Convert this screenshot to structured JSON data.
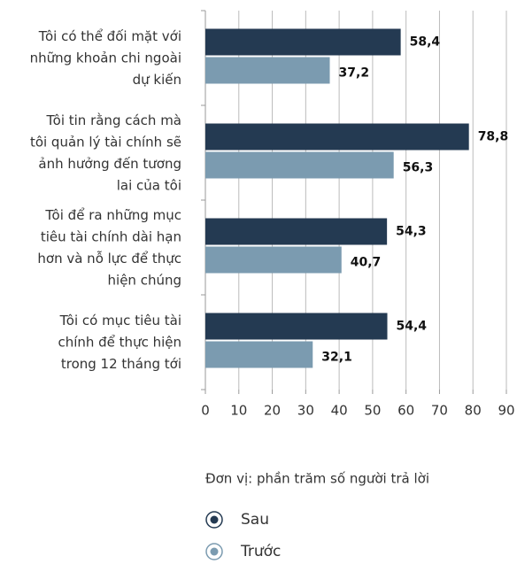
{
  "chart_data": {
    "type": "bar",
    "orientation": "horizontal",
    "categories": [
      "Tôi có thể đối mặt với\nnhững khoản chi ngoài\ndự kiến",
      "Tôi tin rằng cách mà\ntôi quản lý tài chính sẽ\nảnh hưởng đến tương\nlai của tôi",
      "Tôi để ra những mục\ntiêu tài chính dài hạn\nhơn và nỗ lực để thực\nhiện chúng",
      "Tôi có mục tiêu tài\nchính để thực hiện\ntrong 12 tháng tới"
    ],
    "series": [
      {
        "name": "Sau",
        "color": "#243a52",
        "values": [
          58.4,
          78.8,
          54.3,
          54.4
        ],
        "value_labels": [
          "58,4",
          "78,8",
          "54,3",
          "54,4"
        ]
      },
      {
        "name": "Trước",
        "color": "#7b9bb0",
        "values": [
          37.2,
          56.3,
          40.7,
          32.1
        ],
        "value_labels": [
          "37,2",
          "56,3",
          "40,7",
          "32,1"
        ]
      }
    ],
    "xlim": [
      0,
      90
    ],
    "xticks": [
      0,
      10,
      20,
      30,
      40,
      50,
      60,
      70,
      80,
      90
    ],
    "grid": true,
    "note": "Đơn vị: phần trăm số người trả lời"
  }
}
